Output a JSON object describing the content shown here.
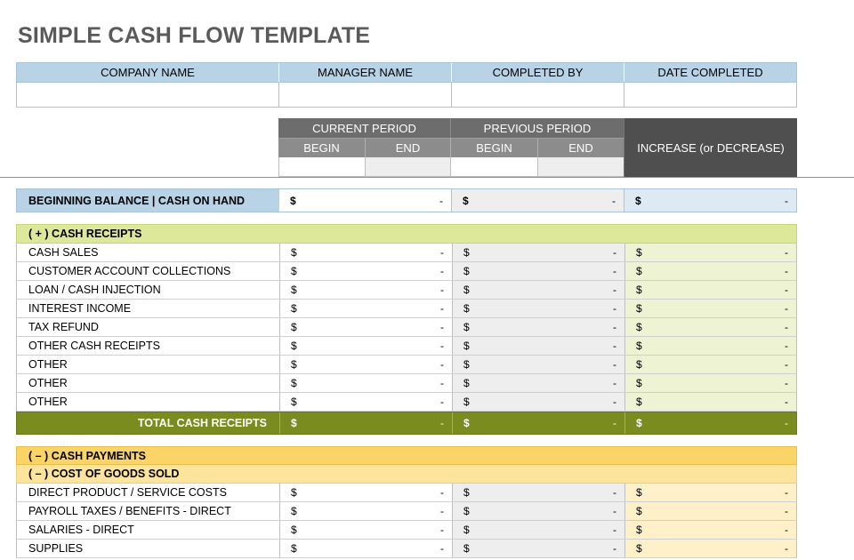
{
  "title": "SIMPLE CASH FLOW TEMPLATE",
  "info_headers": [
    "COMPANY NAME",
    "MANAGER NAME",
    "COMPLETED BY",
    "DATE COMPLETED"
  ],
  "period_headers": {
    "current": "CURRENT PERIOD",
    "previous": "PREVIOUS PERIOD",
    "begin": "BEGIN",
    "end": "END",
    "change": "INCREASE (or DECREASE)"
  },
  "beginning_balance": {
    "label": "BEGINNING BALANCE  |  CASH ON HAND",
    "currency": "$",
    "value": "-"
  },
  "receipts": {
    "header": "( + )   CASH RECEIPTS",
    "items": [
      "CASH SALES",
      "CUSTOMER ACCOUNT COLLECTIONS",
      "LOAN / CASH INJECTION",
      "INTEREST INCOME",
      "TAX REFUND",
      "OTHER CASH RECEIPTS",
      "OTHER",
      "OTHER",
      "OTHER"
    ],
    "total_label": "TOTAL CASH RECEIPTS"
  },
  "payments": {
    "header": "( – )   CASH PAYMENTS",
    "subheader": "( – )   COST OF GOODS SOLD",
    "items": [
      "DIRECT PRODUCT / SERVICE COSTS",
      "PAYROLL TAXES / BENEFITS - DIRECT",
      "SALARIES - DIRECT",
      "SUPPLIES"
    ]
  },
  "currency": "$",
  "empty_value": "-",
  "colors": {
    "info_header": "#b8d3e6",
    "period_header": "#6d6d6d",
    "period_header_dark": "#4f4f4f",
    "balance_label": "#b8d3e6",
    "balance_change": "#dde9f3",
    "receipts_header": "#dde89a",
    "receipts_change": "#eef3d3",
    "receipts_total": "#7a8c1f",
    "payments_header": "#fbd467",
    "payments_sub": "#fde49c",
    "payments_change": "#fef1c9",
    "previous_fill": "#eeeeee"
  }
}
